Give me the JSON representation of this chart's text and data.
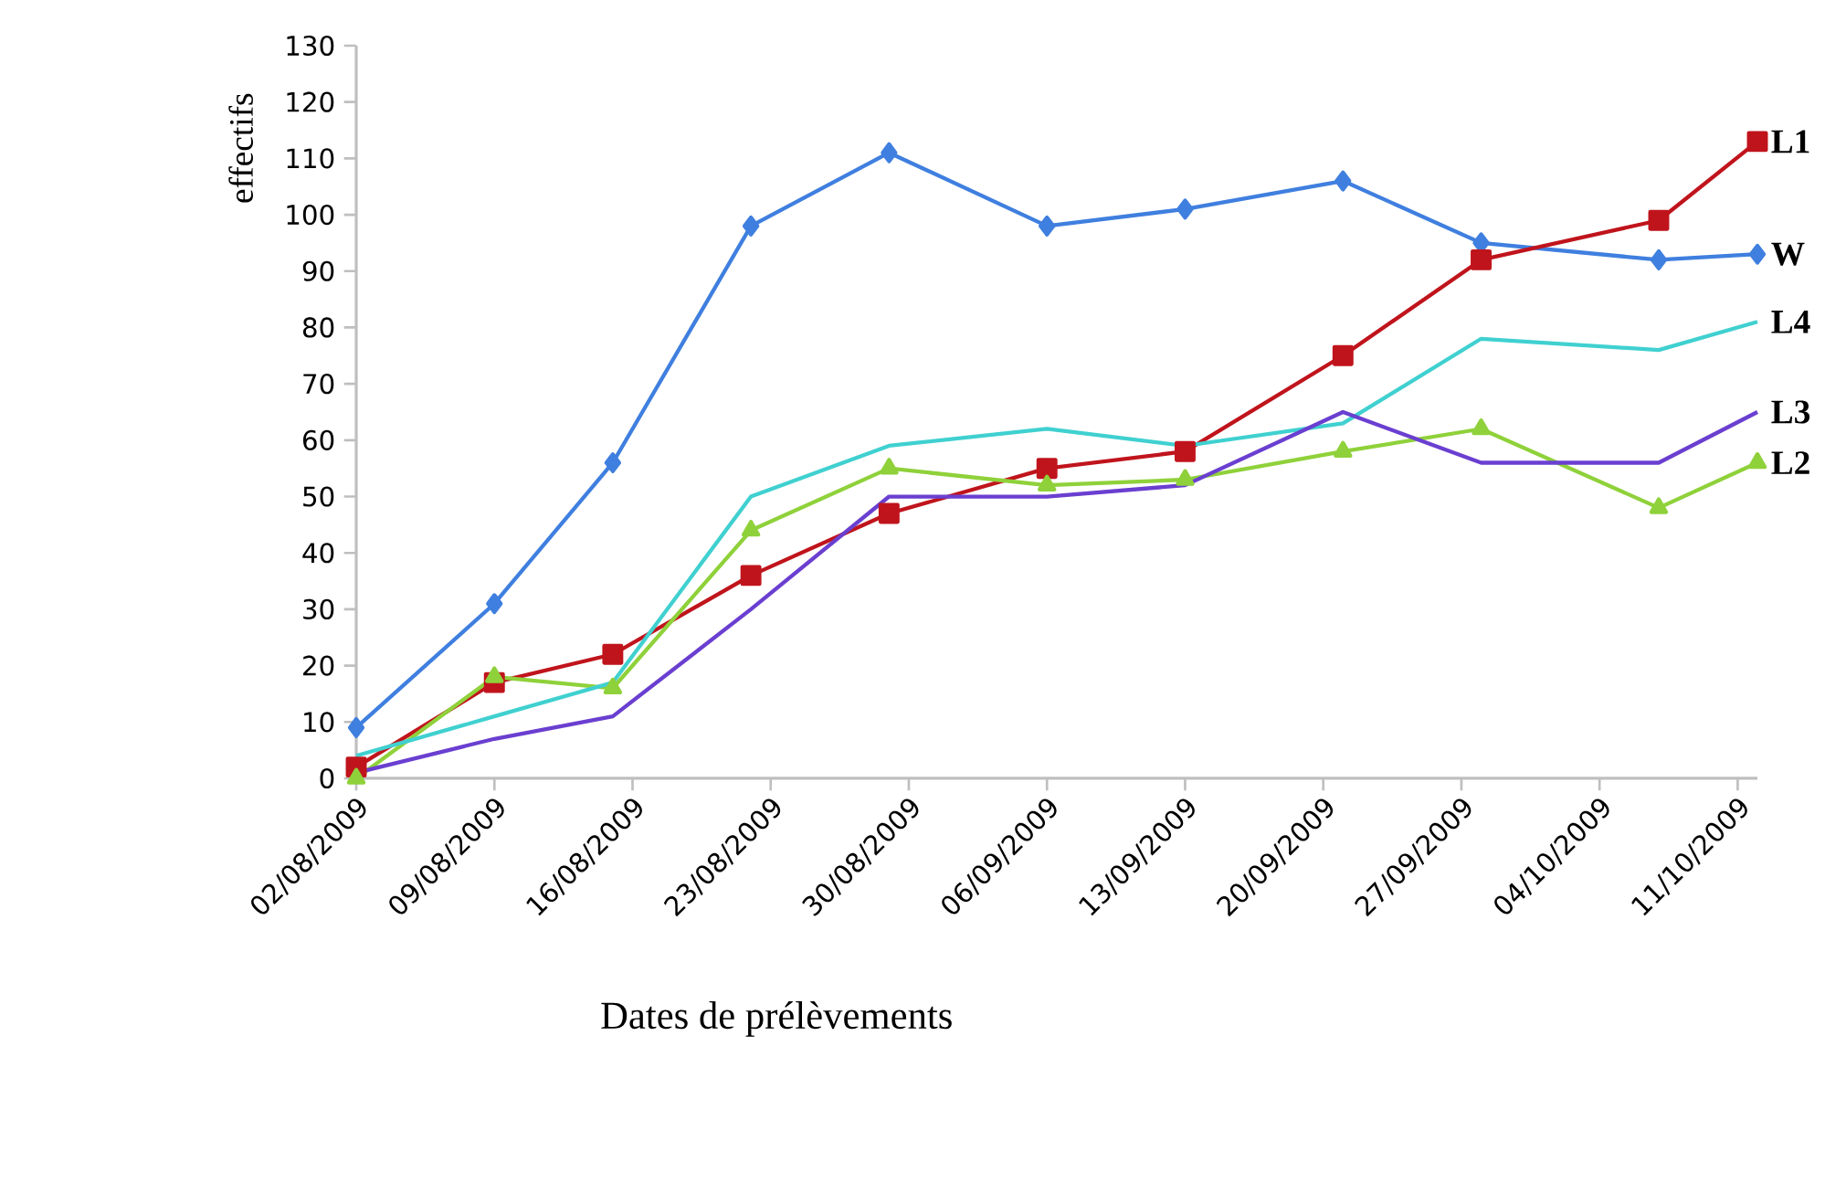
{
  "chart_data": {
    "type": "line",
    "xlabel": "Dates de prélèvements",
    "ylabel": "effectifs",
    "x": [
      "2009-08-02",
      "2009-08-09",
      "2009-08-15",
      "2009-08-22",
      "2009-08-29",
      "2009-09-06",
      "2009-09-13",
      "2009-09-21",
      "2009-09-28",
      "2009-10-07",
      "2009-10-12"
    ],
    "series": [
      {
        "name": "W",
        "color": "#3f7fdf",
        "marker": "diamond",
        "values": [
          9,
          31,
          56,
          98,
          111,
          98,
          101,
          106,
          95,
          92,
          93
        ]
      },
      {
        "name": "L1",
        "color": "#c0141c",
        "marker": "square",
        "values": [
          2,
          17,
          22,
          36,
          47,
          55,
          58,
          75,
          92,
          99,
          113
        ]
      },
      {
        "name": "L4",
        "color": "#40d0d0",
        "marker": "none",
        "values": [
          4,
          11,
          17,
          50,
          59,
          62,
          59,
          63,
          78,
          76,
          81
        ]
      },
      {
        "name": "L3",
        "color": "#6a3fd0",
        "marker": "none",
        "values": [
          1,
          7,
          11,
          30,
          50,
          50,
          52,
          65,
          56,
          56,
          65
        ]
      },
      {
        "name": "L2",
        "color": "#8fd13a",
        "marker": "triangle",
        "values": [
          0,
          18,
          16,
          44,
          55,
          52,
          53,
          58,
          62,
          48,
          56
        ]
      }
    ],
    "xlim": [
      "2009-08-02",
      "2009-10-12"
    ],
    "xticks": [
      {
        "value": "2009-08-02",
        "label": "02/08/2009"
      },
      {
        "value": "2009-08-09",
        "label": "09/08/2009"
      },
      {
        "value": "2009-08-16",
        "label": "16/08/2009"
      },
      {
        "value": "2009-08-23",
        "label": "23/08/2009"
      },
      {
        "value": "2009-08-30",
        "label": "30/08/2009"
      },
      {
        "value": "2009-09-06",
        "label": "06/09/2009"
      },
      {
        "value": "2009-09-13",
        "label": "13/09/2009"
      },
      {
        "value": "2009-09-20",
        "label": "20/09/2009"
      },
      {
        "value": "2009-09-27",
        "label": "27/09/2009"
      },
      {
        "value": "2009-10-04",
        "label": "04/10/2009"
      },
      {
        "value": "2009-10-11",
        "label": "11/10/2009"
      }
    ],
    "ylim": [
      0,
      130
    ],
    "yticks": [
      0,
      10,
      20,
      30,
      40,
      50,
      60,
      70,
      80,
      90,
      100,
      110,
      120,
      130
    ],
    "grid": false,
    "legend": false,
    "line_style": "solid"
  }
}
